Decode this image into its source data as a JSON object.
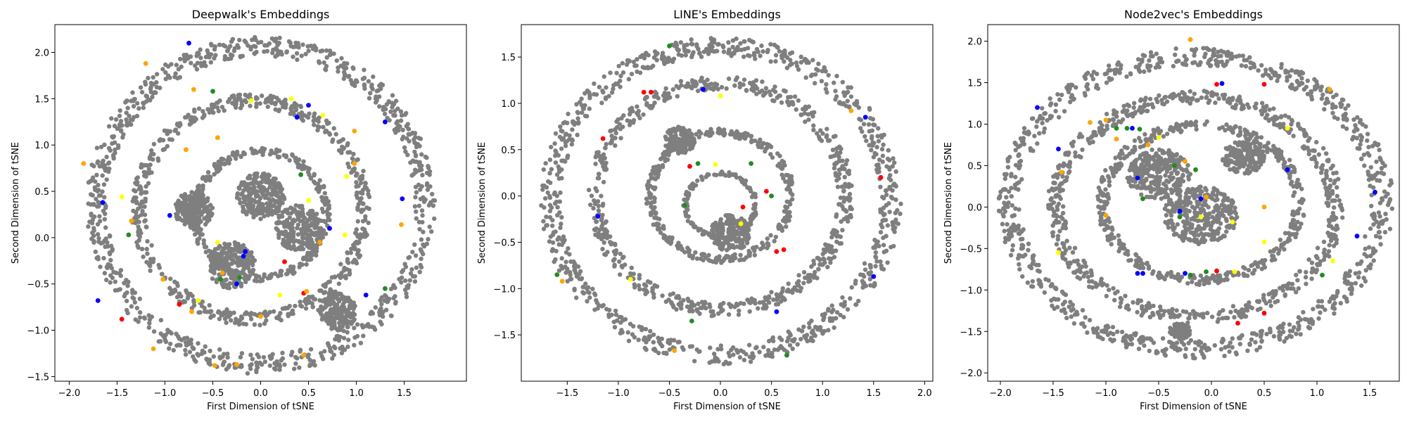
{
  "chart_data": [
    {
      "type": "scatter",
      "title": "Deepwalk's Embeddings",
      "xlabel": "First Dimension of tSNE",
      "ylabel": "Second Dimension of tSNE",
      "xlim": [
        -2.15,
        2.15
      ],
      "ylim": [
        -1.55,
        2.3
      ],
      "xticks": [
        -2.0,
        -1.5,
        -1.0,
        -0.5,
        0.0,
        0.5,
        1.0,
        1.5
      ],
      "xtick_labels": [
        "−2.0",
        "−1.5",
        "−1.0",
        "−0.5",
        "0.0",
        "0.5",
        "1.0",
        "1.5"
      ],
      "yticks": [
        -1.5,
        -1.0,
        -0.5,
        0.0,
        0.5,
        1.0,
        1.5,
        2.0
      ],
      "ytick_labels": [
        "−1.5",
        "−1.0",
        "−0.5",
        "0.0",
        "0.5",
        "1.0",
        "1.5",
        "2.0"
      ],
      "grid": false,
      "highlight_points": [
        {
          "x": -1.2,
          "y": 1.88,
          "color": "#ffa500"
        },
        {
          "x": -0.75,
          "y": 2.1,
          "color": "#0000ff"
        },
        {
          "x": -0.7,
          "y": 1.6,
          "color": "#ffa500"
        },
        {
          "x": -0.5,
          "y": 1.58,
          "color": "#228b22"
        },
        {
          "x": -0.1,
          "y": 1.48,
          "color": "#ffff00"
        },
        {
          "x": 0.32,
          "y": 1.5,
          "color": "#ffff00"
        },
        {
          "x": 0.38,
          "y": 1.3,
          "color": "#0000ff"
        },
        {
          "x": 0.5,
          "y": 1.43,
          "color": "#0000ff"
        },
        {
          "x": 0.65,
          "y": 1.32,
          "color": "#ffff00"
        },
        {
          "x": 1.3,
          "y": 1.25,
          "color": "#0000ff"
        },
        {
          "x": 0.98,
          "y": 1.15,
          "color": "#ffa500"
        },
        {
          "x": -0.78,
          "y": 0.95,
          "color": "#ffa500"
        },
        {
          "x": -0.45,
          "y": 1.08,
          "color": "#ffa500"
        },
        {
          "x": -1.85,
          "y": 0.8,
          "color": "#ffa500"
        },
        {
          "x": 0.42,
          "y": 0.68,
          "color": "#228b22"
        },
        {
          "x": 0.9,
          "y": 0.66,
          "color": "#ffff00"
        },
        {
          "x": 0.98,
          "y": 0.8,
          "color": "#ffa500"
        },
        {
          "x": -1.45,
          "y": 0.44,
          "color": "#ffff00"
        },
        {
          "x": -1.65,
          "y": 0.38,
          "color": "#0000ff"
        },
        {
          "x": -0.95,
          "y": 0.24,
          "color": "#0000ff"
        },
        {
          "x": 0.5,
          "y": 0.4,
          "color": "#ffff00"
        },
        {
          "x": 1.48,
          "y": 0.42,
          "color": "#0000ff"
        },
        {
          "x": -1.35,
          "y": 0.18,
          "color": "#ffa500"
        },
        {
          "x": -1.38,
          "y": 0.03,
          "color": "#228b22"
        },
        {
          "x": -0.45,
          "y": -0.05,
          "color": "#ffff00"
        },
        {
          "x": -0.16,
          "y": -0.15,
          "color": "#0000ff"
        },
        {
          "x": -0.18,
          "y": -0.2,
          "color": "#0000ff"
        },
        {
          "x": 0.72,
          "y": 0.1,
          "color": "#0000ff"
        },
        {
          "x": 0.88,
          "y": 0.03,
          "color": "#ffff00"
        },
        {
          "x": 1.47,
          "y": 0.14,
          "color": "#ffa500"
        },
        {
          "x": 0.62,
          "y": -0.05,
          "color": "#ffa500"
        },
        {
          "x": 0.25,
          "y": -0.26,
          "color": "#ff0000"
        },
        {
          "x": -0.4,
          "y": -0.38,
          "color": "#ffa500"
        },
        {
          "x": -0.42,
          "y": -0.45,
          "color": "#228b22"
        },
        {
          "x": -0.25,
          "y": -0.5,
          "color": "#0000ff"
        },
        {
          "x": -0.22,
          "y": -0.43,
          "color": "#228b22"
        },
        {
          "x": -1.02,
          "y": -0.45,
          "color": "#ffa500"
        },
        {
          "x": -0.65,
          "y": -0.68,
          "color": "#ffff00"
        },
        {
          "x": -0.85,
          "y": -0.72,
          "color": "#ff0000"
        },
        {
          "x": -0.72,
          "y": -0.8,
          "color": "#ffa500"
        },
        {
          "x": 0.2,
          "y": -0.62,
          "color": "#ffff00"
        },
        {
          "x": 0.45,
          "y": -0.6,
          "color": "#ff0000"
        },
        {
          "x": 0.48,
          "y": -0.58,
          "color": "#ffa500"
        },
        {
          "x": 1.1,
          "y": -0.62,
          "color": "#0000ff"
        },
        {
          "x": 1.3,
          "y": -0.55,
          "color": "#228b22"
        },
        {
          "x": -1.7,
          "y": -0.68,
          "color": "#0000ff"
        },
        {
          "x": -1.45,
          "y": -0.88,
          "color": "#ff0000"
        },
        {
          "x": -1.12,
          "y": -1.2,
          "color": "#ffa500"
        },
        {
          "x": -0.48,
          "y": -1.38,
          "color": "#ffa500"
        },
        {
          "x": -0.25,
          "y": -1.37,
          "color": "#ffa500"
        },
        {
          "x": 0.45,
          "y": -1.27,
          "color": "#ffa500"
        },
        {
          "x": 0.0,
          "y": -0.85,
          "color": "#ffa500"
        }
      ]
    },
    {
      "type": "scatter",
      "title": "LINE's Embeddings",
      "xlabel": "First Dimension of tSNE",
      "ylabel": "Second Dimension of tSNE",
      "xlim": [
        -1.95,
        2.08
      ],
      "ylim": [
        -2.0,
        1.85
      ],
      "xticks": [
        -1.5,
        -1.0,
        -0.5,
        0.0,
        0.5,
        1.0,
        1.5,
        2.0
      ],
      "xtick_labels": [
        "−1.5",
        "−1.0",
        "−0.5",
        "0.0",
        "0.5",
        "1.0",
        "1.5",
        "2.0"
      ],
      "yticks": [
        -1.5,
        -1.0,
        -0.5,
        0.0,
        0.5,
        1.0,
        1.5
      ],
      "ytick_labels": [
        "−1.5",
        "−1.0",
        "−0.5",
        "0.0",
        "0.5",
        "1.0",
        "1.5"
      ],
      "grid": false,
      "highlight_points": [
        {
          "x": -0.5,
          "y": 1.62,
          "color": "#228b22"
        },
        {
          "x": -0.75,
          "y": 1.12,
          "color": "#ff0000"
        },
        {
          "x": -0.68,
          "y": 1.12,
          "color": "#ff0000"
        },
        {
          "x": -0.17,
          "y": 1.15,
          "color": "#0000ff"
        },
        {
          "x": 0.0,
          "y": 1.08,
          "color": "#ffff00"
        },
        {
          "x": -1.15,
          "y": 0.62,
          "color": "#ff0000"
        },
        {
          "x": 1.28,
          "y": 0.92,
          "color": "#ffa500"
        },
        {
          "x": 1.42,
          "y": 0.85,
          "color": "#0000ff"
        },
        {
          "x": -0.3,
          "y": 0.32,
          "color": "#ff0000"
        },
        {
          "x": -0.22,
          "y": 0.35,
          "color": "#228b22"
        },
        {
          "x": -0.05,
          "y": 0.34,
          "color": "#ffff00"
        },
        {
          "x": 0.3,
          "y": 0.35,
          "color": "#228b22"
        },
        {
          "x": 0.45,
          "y": 0.05,
          "color": "#ff0000"
        },
        {
          "x": 0.5,
          "y": 0.0,
          "color": "#228b22"
        },
        {
          "x": 1.57,
          "y": 0.2,
          "color": "#ff0000"
        },
        {
          "x": -0.35,
          "y": -0.1,
          "color": "#228b22"
        },
        {
          "x": 0.22,
          "y": -0.12,
          "color": "#ff0000"
        },
        {
          "x": 0.2,
          "y": -0.3,
          "color": "#ffff00"
        },
        {
          "x": -1.2,
          "y": -0.22,
          "color": "#0000ff"
        },
        {
          "x": 0.55,
          "y": -0.6,
          "color": "#ff0000"
        },
        {
          "x": 0.62,
          "y": -0.58,
          "color": "#ff0000"
        },
        {
          "x": -1.6,
          "y": -0.85,
          "color": "#228b22"
        },
        {
          "x": -1.55,
          "y": -0.92,
          "color": "#ffa500"
        },
        {
          "x": -0.88,
          "y": -0.9,
          "color": "#ffff00"
        },
        {
          "x": 1.5,
          "y": -0.87,
          "color": "#0000ff"
        },
        {
          "x": -0.28,
          "y": -1.35,
          "color": "#228b22"
        },
        {
          "x": 0.55,
          "y": -1.25,
          "color": "#0000ff"
        },
        {
          "x": -0.45,
          "y": -1.67,
          "color": "#ffa500"
        },
        {
          "x": 0.65,
          "y": -1.72,
          "color": "#228b22"
        }
      ]
    },
    {
      "type": "scatter",
      "title": "Node2vec's Embeddings",
      "xlabel": "First Dimension of tSNE",
      "ylabel": "Second Dimension of tSNE",
      "xlim": [
        -2.12,
        1.78
      ],
      "ylim": [
        -2.1,
        2.2
      ],
      "xticks": [
        -2.0,
        -1.5,
        -1.0,
        -0.5,
        0.0,
        0.5,
        1.0,
        1.5
      ],
      "xtick_labels": [
        "−2.0",
        "−1.5",
        "−1.0",
        "−0.5",
        "0.0",
        "0.5",
        "1.0",
        "1.5"
      ],
      "yticks": [
        -2.0,
        -1.5,
        -1.0,
        -0.5,
        0.0,
        0.5,
        1.0,
        1.5,
        2.0
      ],
      "ytick_labels": [
        "−2.0",
        "−1.5",
        "−1.0",
        "−0.5",
        "0.0",
        "0.5",
        "1.0",
        "1.5",
        "2.0"
      ],
      "grid": false,
      "highlight_points": [
        {
          "x": -0.2,
          "y": 2.02,
          "color": "#ffa500"
        },
        {
          "x": 0.05,
          "y": 1.48,
          "color": "#ff0000"
        },
        {
          "x": 0.1,
          "y": 1.49,
          "color": "#0000ff"
        },
        {
          "x": 0.5,
          "y": 1.48,
          "color": "#ff0000"
        },
        {
          "x": 1.12,
          "y": 1.42,
          "color": "#ffa500"
        },
        {
          "x": -1.65,
          "y": 1.2,
          "color": "#0000ff"
        },
        {
          "x": -1.15,
          "y": 1.02,
          "color": "#ffa500"
        },
        {
          "x": -1.0,
          "y": 1.05,
          "color": "#ffa500"
        },
        {
          "x": -0.9,
          "y": 0.95,
          "color": "#228b22"
        },
        {
          "x": -0.8,
          "y": 0.95,
          "color": "#228b22"
        },
        {
          "x": -0.75,
          "y": 0.95,
          "color": "#0000ff"
        },
        {
          "x": -0.68,
          "y": 0.94,
          "color": "#228b22"
        },
        {
          "x": -0.9,
          "y": 0.82,
          "color": "#ffa500"
        },
        {
          "x": -0.5,
          "y": 0.84,
          "color": "#ffff00"
        },
        {
          "x": -0.6,
          "y": 0.75,
          "color": "#ffa500"
        },
        {
          "x": 0.72,
          "y": 0.95,
          "color": "#ffff00"
        },
        {
          "x": -1.45,
          "y": 0.7,
          "color": "#0000ff"
        },
        {
          "x": -0.25,
          "y": 0.55,
          "color": "#ffa500"
        },
        {
          "x": -0.35,
          "y": 0.5,
          "color": "#228b22"
        },
        {
          "x": -0.15,
          "y": 0.45,
          "color": "#228b22"
        },
        {
          "x": 0.72,
          "y": 0.45,
          "color": "#0000ff"
        },
        {
          "x": -1.42,
          "y": 0.42,
          "color": "#ffa500"
        },
        {
          "x": -0.7,
          "y": 0.35,
          "color": "#0000ff"
        },
        {
          "x": 1.55,
          "y": 0.18,
          "color": "#0000ff"
        },
        {
          "x": -0.1,
          "y": 0.1,
          "color": "#0000ff"
        },
        {
          "x": -0.05,
          "y": 0.12,
          "color": "#ffa500"
        },
        {
          "x": 0.5,
          "y": 0.0,
          "color": "#ffa500"
        },
        {
          "x": -0.65,
          "y": 0.1,
          "color": "#228b22"
        },
        {
          "x": -1.0,
          "y": -0.1,
          "color": "#ffa500"
        },
        {
          "x": -0.3,
          "y": -0.12,
          "color": "#228b22"
        },
        {
          "x": -0.1,
          "y": -0.12,
          "color": "#ffff00"
        },
        {
          "x": 0.2,
          "y": -0.18,
          "color": "#ffff00"
        },
        {
          "x": -0.3,
          "y": -0.05,
          "color": "#0000ff"
        },
        {
          "x": 1.38,
          "y": -0.35,
          "color": "#0000ff"
        },
        {
          "x": 0.5,
          "y": -0.42,
          "color": "#ffff00"
        },
        {
          "x": -0.7,
          "y": -0.8,
          "color": "#0000ff"
        },
        {
          "x": -0.65,
          "y": -0.8,
          "color": "#0000ff"
        },
        {
          "x": -0.25,
          "y": -0.8,
          "color": "#0000ff"
        },
        {
          "x": -0.2,
          "y": -0.82,
          "color": "#228b22"
        },
        {
          "x": -0.05,
          "y": -0.78,
          "color": "#228b22"
        },
        {
          "x": 0.05,
          "y": -0.77,
          "color": "#ff0000"
        },
        {
          "x": 0.22,
          "y": -0.78,
          "color": "#ffff00"
        },
        {
          "x": 1.15,
          "y": -0.65,
          "color": "#ffff00"
        },
        {
          "x": 1.05,
          "y": -0.82,
          "color": "#228b22"
        },
        {
          "x": 0.5,
          "y": -1.28,
          "color": "#ff0000"
        },
        {
          "x": 0.25,
          "y": -1.4,
          "color": "#ff0000"
        },
        {
          "x": -1.45,
          "y": -0.55,
          "color": "#ffff00"
        }
      ]
    }
  ]
}
